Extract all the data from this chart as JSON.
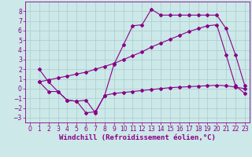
{
  "background_color": "#cce8e8",
  "grid_color": "#aacccc",
  "line_color": "#880088",
  "marker": "D",
  "markersize": 2.0,
  "linewidth": 0.8,
  "xlabel": "Windchill (Refroidissement éolien,°C)",
  "xlabel_fontsize": 6.5,
  "xlim": [
    -0.5,
    23.5
  ],
  "ylim": [
    -3.5,
    9.0
  ],
  "xticks": [
    0,
    1,
    2,
    3,
    4,
    5,
    6,
    7,
    8,
    9,
    10,
    11,
    12,
    13,
    14,
    15,
    16,
    17,
    18,
    19,
    20,
    21,
    22,
    23
  ],
  "yticks": [
    -3,
    -2,
    -1,
    0,
    1,
    2,
    3,
    4,
    5,
    6,
    7,
    8
  ],
  "tick_fontsize": 5.5,
  "line1_x": [
    1,
    2,
    3,
    4,
    5,
    6,
    7,
    8,
    9,
    10,
    11,
    12,
    13,
    14,
    15,
    16,
    17,
    18,
    19,
    20,
    21,
    22,
    23
  ],
  "line1_y": [
    2.0,
    0.7,
    -0.3,
    -1.2,
    -1.3,
    -2.5,
    -2.4,
    -0.7,
    2.5,
    4.5,
    6.5,
    6.6,
    8.2,
    7.6,
    7.6,
    7.6,
    7.6,
    7.6,
    7.6,
    7.6,
    6.2,
    3.5,
    0.3
  ],
  "line2_x": [
    1,
    2,
    3,
    4,
    5,
    6,
    7,
    8,
    9,
    10,
    11,
    12,
    13,
    14,
    15,
    16,
    17,
    18,
    19,
    20,
    21,
    22,
    23
  ],
  "line2_y": [
    0.7,
    0.9,
    1.1,
    1.3,
    1.5,
    1.7,
    2.0,
    2.3,
    2.6,
    3.0,
    3.4,
    3.8,
    4.3,
    4.7,
    5.1,
    5.5,
    5.9,
    6.2,
    6.5,
    6.6,
    3.5,
    0.3,
    -0.5
  ],
  "line3_x": [
    1,
    2,
    3,
    4,
    5,
    6,
    7,
    8,
    9,
    10,
    11,
    12,
    13,
    14,
    15,
    16,
    17,
    18,
    19,
    20,
    21,
    22,
    23
  ],
  "line3_y": [
    0.7,
    -0.3,
    -0.3,
    -1.2,
    -1.3,
    -1.2,
    -2.5,
    -0.7,
    -0.5,
    -0.4,
    -0.3,
    -0.2,
    -0.1,
    0.0,
    0.1,
    0.15,
    0.2,
    0.25,
    0.3,
    0.35,
    0.3,
    0.15,
    0.0
  ]
}
